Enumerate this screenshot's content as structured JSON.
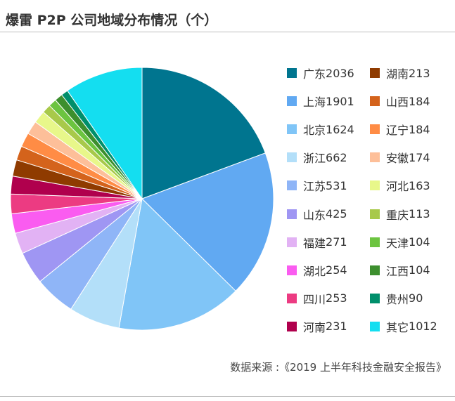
{
  "title": "爆雷 P2P 公司地域分布情况（个）",
  "source": "数据来源 :《2019 上半年科技金融安全报告》",
  "chart_data": {
    "type": "pie",
    "title": "爆雷 P2P 公司地域分布情况（个）",
    "legend_position": "right",
    "slices": [
      {
        "name": "广东",
        "value": 2036,
        "color": "#00758f"
      },
      {
        "name": "上海",
        "value": 1901,
        "color": "#61a9f2"
      },
      {
        "name": "北京",
        "value": 1624,
        "color": "#80c5f7"
      },
      {
        "name": "浙江",
        "value": 662,
        "color": "#b3dff9"
      },
      {
        "name": "江苏",
        "value": 531,
        "color": "#8fb5f7"
      },
      {
        "name": "山东",
        "value": 425,
        "color": "#9f96f3"
      },
      {
        "name": "福建",
        "value": 271,
        "color": "#e2b2f4"
      },
      {
        "name": "湖北",
        "value": 254,
        "color": "#fa5cf0"
      },
      {
        "name": "四川",
        "value": 253,
        "color": "#ec3b82"
      },
      {
        "name": "河南",
        "value": 231,
        "color": "#b0004d"
      },
      {
        "name": "湖南",
        "value": 213,
        "color": "#8f3b00"
      },
      {
        "name": "山西",
        "value": 184,
        "color": "#d4631c"
      },
      {
        "name": "辽宁",
        "value": 184,
        "color": "#ff8c45"
      },
      {
        "name": "安徽",
        "value": 174,
        "color": "#fdbf99"
      },
      {
        "name": "河北",
        "value": 163,
        "color": "#e8f78a"
      },
      {
        "name": "重庆",
        "value": 113,
        "color": "#a8c94a"
      },
      {
        "name": "天津",
        "value": 104,
        "color": "#6cc440"
      },
      {
        "name": "江西",
        "value": 104,
        "color": "#3d8f2e"
      },
      {
        "name": "贵州",
        "value": 90,
        "color": "#008f6b"
      },
      {
        "name": "其它",
        "value": 1012,
        "color": "#14def0"
      }
    ]
  }
}
